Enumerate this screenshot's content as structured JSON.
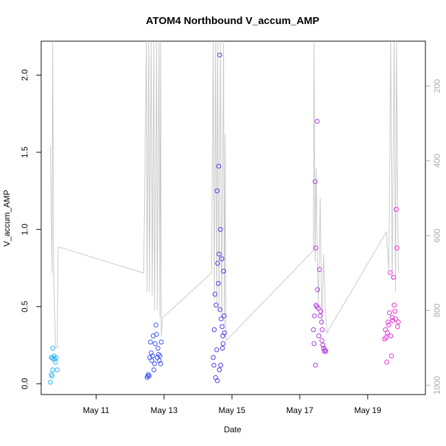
{
  "chart_data": {
    "type": "scatter",
    "title": "ATOM4 Northbound V_accum_AMP",
    "xlabel": "Date",
    "ylabel": "V_accum_AMP",
    "x_ticks": [
      {
        "day": 11,
        "label": "May 11"
      },
      {
        "day": 13,
        "label": "May 13"
      },
      {
        "day": 15,
        "label": "May 15"
      },
      {
        "day": 17,
        "label": "May 17"
      },
      {
        "day": 19,
        "label": "May 19"
      }
    ],
    "xlim": [
      9.38,
      20.7
    ],
    "ylim": [
      -0.07,
      2.22
    ],
    "y_ticks": [
      0.0,
      0.5,
      1.0,
      1.5,
      2.0
    ],
    "y_tick_labels": [
      "0.0",
      "0.5",
      "1.0",
      "1.5",
      "2.0"
    ],
    "y2_ticks": [
      200,
      400,
      600,
      800,
      1000
    ],
    "y2_tick_labels": [
      "200",
      "400",
      "600",
      "800",
      "1000"
    ],
    "y2lim": [
      1025,
      80
    ],
    "grid": false,
    "series": [
      {
        "type": "points",
        "color_gradient": [
          "#29b6f6",
          "#3355ff",
          "#4b2be8",
          "#a832e0",
          "#ec26d6"
        ],
        "points": [
          [
            9.65,
            0.01
          ],
          [
            9.68,
            0.06
          ],
          [
            9.7,
            0.05
          ],
          [
            9.72,
            0.09
          ],
          [
            9.68,
            0.17
          ],
          [
            9.7,
            0.17
          ],
          [
            9.72,
            0.23
          ],
          [
            9.74,
            0.16
          ],
          [
            9.76,
            0.18
          ],
          [
            9.78,
            0.16
          ],
          [
            9.8,
            0.14
          ],
          [
            9.82,
            0.17
          ],
          [
            9.85,
            0.09
          ],
          [
            12.5,
            0.04
          ],
          [
            12.52,
            0.05
          ],
          [
            12.54,
            0.06
          ],
          [
            12.56,
            0.05
          ],
          [
            12.58,
            0.17
          ],
          [
            12.6,
            0.27
          ],
          [
            12.62,
            0.2
          ],
          [
            12.64,
            0.15
          ],
          [
            12.66,
            0.18
          ],
          [
            12.68,
            0.31
          ],
          [
            12.7,
            0.09
          ],
          [
            12.72,
            0.13
          ],
          [
            12.74,
            0.26
          ],
          [
            12.76,
            0.38
          ],
          [
            12.78,
            0.32
          ],
          [
            12.8,
            0.17
          ],
          [
            12.82,
            0.23
          ],
          [
            12.84,
            0.19
          ],
          [
            12.86,
            0.15
          ],
          [
            12.88,
            0.18
          ],
          [
            12.9,
            0.13
          ],
          [
            12.92,
            0.27
          ],
          [
            14.45,
            0.17
          ],
          [
            14.47,
            0.12
          ],
          [
            14.48,
            0.35
          ],
          [
            14.5,
            0.58
          ],
          [
            14.52,
            0.04
          ],
          [
            14.53,
            0.51
          ],
          [
            14.55,
            0.22
          ],
          [
            14.56,
            1.25
          ],
          [
            14.57,
            0.02
          ],
          [
            14.58,
            0.78
          ],
          [
            14.6,
            0.65
          ],
          [
            14.61,
            1.41
          ],
          [
            14.62,
            0.84
          ],
          [
            14.63,
            0.09
          ],
          [
            14.64,
            2.13
          ],
          [
            14.65,
            0.48
          ],
          [
            14.66,
            1.0
          ],
          [
            14.67,
            0.12
          ],
          [
            14.68,
            0.42
          ],
          [
            14.7,
            0.81
          ],
          [
            14.71,
            0.37
          ],
          [
            14.72,
            0.23
          ],
          [
            14.73,
            0.31
          ],
          [
            14.74,
            0.26
          ],
          [
            14.75,
            0.73
          ],
          [
            14.77,
            0.44
          ],
          [
            14.78,
            0.33
          ],
          [
            17.4,
            0.35
          ],
          [
            17.42,
            0.26
          ],
          [
            17.43,
            0.44
          ],
          [
            17.45,
            1.31
          ],
          [
            17.46,
            0.12
          ],
          [
            17.47,
            0.88
          ],
          [
            17.48,
            0.51
          ],
          [
            17.5,
            0.5
          ],
          [
            17.51,
            1.7
          ],
          [
            17.52,
            0.61
          ],
          [
            17.54,
            0.49
          ],
          [
            17.56,
            0.31
          ],
          [
            17.58,
            0.74
          ],
          [
            17.6,
            0.44
          ],
          [
            17.62,
            0.47
          ],
          [
            17.64,
            0.4
          ],
          [
            17.65,
            0.28
          ],
          [
            17.66,
            0.35
          ],
          [
            17.68,
            0.25
          ],
          [
            17.7,
            0.23
          ],
          [
            17.72,
            0.21
          ],
          [
            17.74,
            0.22
          ],
          [
            17.76,
            0.21
          ],
          [
            19.5,
            0.29
          ],
          [
            19.52,
            0.35
          ],
          [
            19.54,
            0.3
          ],
          [
            19.56,
            0.14
          ],
          [
            19.58,
            0.33
          ],
          [
            19.6,
            0.4
          ],
          [
            19.62,
            0.38
          ],
          [
            19.64,
            0.46
          ],
          [
            19.66,
            0.72
          ],
          [
            19.68,
            0.31
          ],
          [
            19.7,
            0.18
          ],
          [
            19.72,
            0.43
          ],
          [
            19.74,
            0.41
          ],
          [
            19.76,
            0.69
          ],
          [
            19.78,
            0.51
          ],
          [
            19.8,
            0.47
          ],
          [
            19.82,
            0.42
          ],
          [
            19.84,
            1.13
          ],
          [
            19.86,
            0.88
          ],
          [
            19.88,
            0.37
          ],
          [
            19.9,
            0.4
          ]
        ]
      },
      {
        "type": "line",
        "axis": "right",
        "color": "#c8c8c8",
        "points": [
          [
            9.65,
            360
          ],
          [
            9.7,
            700
          ],
          [
            9.72,
            80
          ],
          [
            9.75,
            700
          ],
          [
            9.8,
            900
          ],
          [
            9.85,
            900
          ],
          [
            9.88,
            630
          ],
          [
            12.4,
            700
          ],
          [
            12.48,
            80
          ],
          [
            12.5,
            750
          ],
          [
            12.55,
            80
          ],
          [
            12.57,
            750
          ],
          [
            12.62,
            80
          ],
          [
            12.65,
            760
          ],
          [
            12.7,
            80
          ],
          [
            12.72,
            800
          ],
          [
            12.78,
            80
          ],
          [
            12.8,
            800
          ],
          [
            12.85,
            80
          ],
          [
            12.88,
            820
          ],
          [
            12.9,
            80
          ],
          [
            12.92,
            870
          ],
          [
            12.95,
            820
          ],
          [
            14.4,
            700
          ],
          [
            14.45,
            80
          ],
          [
            14.48,
            770
          ],
          [
            14.52,
            80
          ],
          [
            14.55,
            780
          ],
          [
            14.58,
            80
          ],
          [
            14.62,
            800
          ],
          [
            14.66,
            80
          ],
          [
            14.7,
            820
          ],
          [
            14.75,
            80
          ],
          [
            14.78,
            840
          ],
          [
            14.8,
            330
          ],
          [
            14.82,
            870
          ],
          [
            14.84,
            880
          ],
          [
            17.4,
            640
          ],
          [
            17.42,
            80
          ],
          [
            17.45,
            670
          ],
          [
            17.48,
            420
          ],
          [
            17.52,
            700
          ],
          [
            17.55,
            780
          ],
          [
            17.6,
            500
          ],
          [
            17.65,
            840
          ],
          [
            17.7,
            650
          ],
          [
            17.75,
            800
          ],
          [
            17.8,
            860
          ],
          [
            19.55,
            590
          ],
          [
            19.62,
            690
          ],
          [
            19.68,
            80
          ],
          [
            19.72,
            720
          ],
          [
            19.78,
            80
          ],
          [
            19.82,
            750
          ],
          [
            19.85,
            80
          ],
          [
            19.9,
            700
          ]
        ]
      }
    ]
  }
}
